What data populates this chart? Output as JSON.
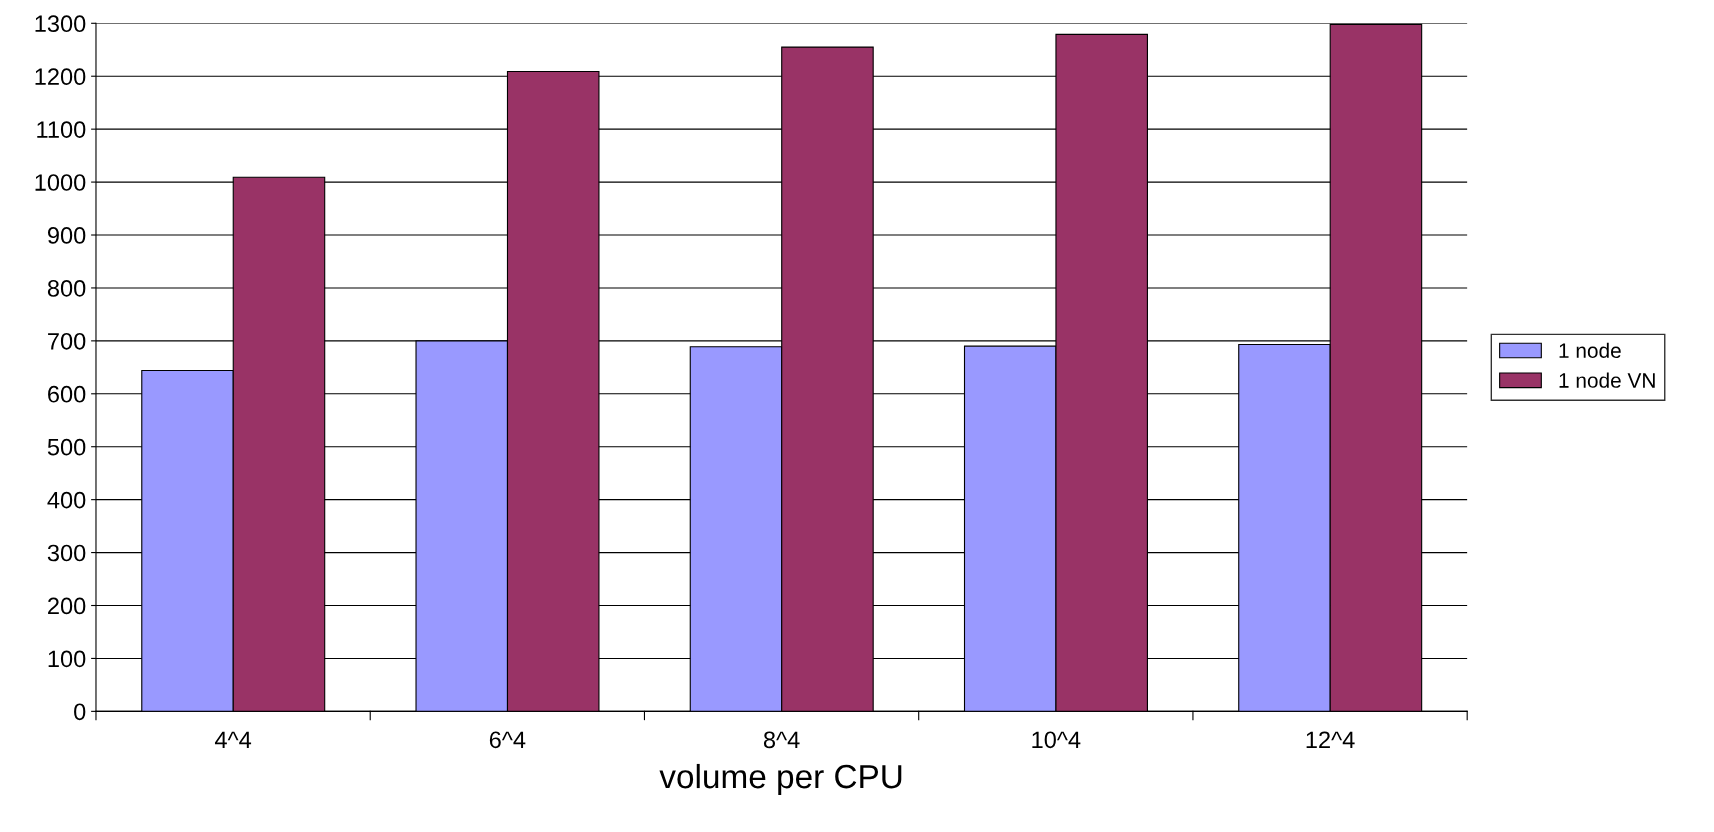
{
  "chart_data": {
    "type": "bar",
    "xlabel": "volume per CPU",
    "categories": [
      "4^4",
      "6^4",
      "8^4",
      "10^4",
      "12^4"
    ],
    "series": [
      {
        "name": "1 node",
        "color": "#9999ff",
        "values": [
          644,
          700,
          689,
          690,
          693
        ]
      },
      {
        "name": "1 node VN",
        "color": "#993366",
        "values": [
          1009,
          1209,
          1255,
          1279,
          1298
        ]
      }
    ],
    "ylim": [
      0,
      1300
    ],
    "yticks": [
      0,
      100,
      200,
      300,
      400,
      500,
      600,
      700,
      800,
      900,
      1000,
      1100,
      1200,
      1300
    ],
    "grid": "y",
    "legend": "right"
  }
}
